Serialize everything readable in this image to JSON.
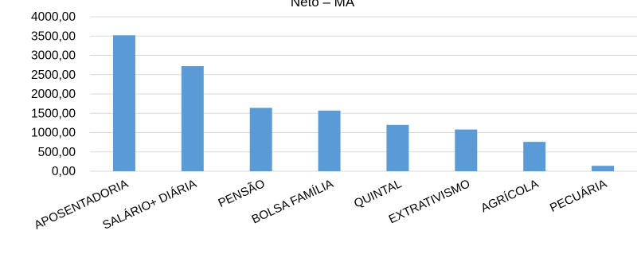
{
  "chart_data": {
    "type": "bar",
    "title": "Neto – MA",
    "categories": [
      "APOSENTADORIA",
      "SALÁRIO+ DIÁRIA",
      "PENSÃO",
      "BOLSA FAMÍLIA",
      "QUINTAL",
      "EXTRATIVISMO",
      "AGRÍCOLA",
      "PECUÁRIA"
    ],
    "series": [
      {
        "values": [
          3520,
          2720,
          1640,
          1570,
          1200,
          1080,
          760,
          140
        ],
        "color": "#5b9bd5"
      }
    ],
    "ylim": [
      0,
      4000
    ],
    "yticks": [
      0,
      500,
      1000,
      1500,
      2000,
      2500,
      3000,
      3500,
      4000
    ],
    "ytick_labels": [
      "0,00",
      "500,00",
      "1000,00",
      "1500,00",
      "2000,00",
      "2500,00",
      "3000,00",
      "3500,00",
      "4000,00"
    ],
    "grid": true,
    "gridline_color": "#d9d9d9",
    "legend": "none",
    "xlabel": "",
    "ylabel": ""
  }
}
